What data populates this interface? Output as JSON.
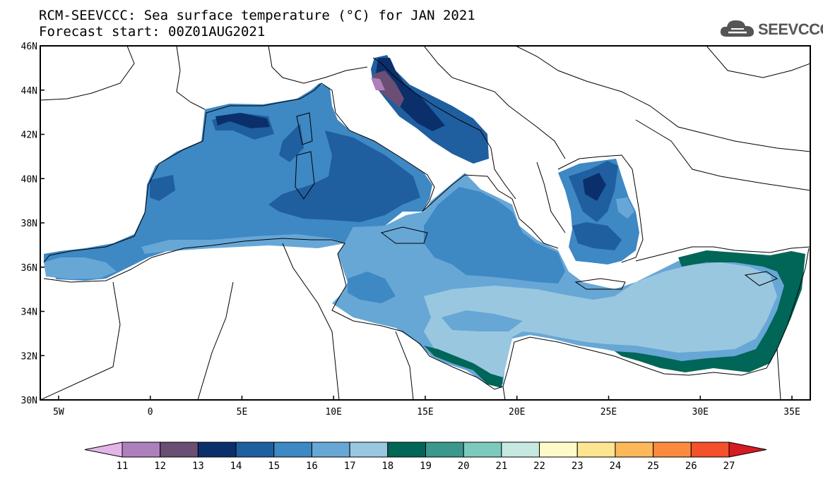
{
  "title": {
    "line1": "RCM-SEEVCCC: Sea surface temperature (°C) for JAN 2021",
    "line2": "Forecast start: 00Z01AUG2021"
  },
  "logo": {
    "text": "SEEVCCC",
    "icon": "cloud-icon"
  },
  "map": {
    "region": "Mediterranean Sea",
    "lat_labels": [
      "46N",
      "44N",
      "42N",
      "40N",
      "38N",
      "36N",
      "34N",
      "32N",
      "30N"
    ],
    "lon_labels": [
      "5W",
      "0",
      "5E",
      "10E",
      "15E",
      "20E",
      "25E",
      "30E",
      "35E"
    ],
    "lat_range": [
      30,
      46
    ],
    "lon_range": [
      -6,
      36
    ]
  },
  "colorbar": {
    "labels": [
      "11",
      "12",
      "13",
      "14",
      "15",
      "16",
      "17",
      "18",
      "19",
      "20",
      "21",
      "22",
      "23",
      "24",
      "25",
      "26",
      "27"
    ],
    "colors": [
      "#e2b6e6",
      "#ad80bb",
      "#6a4e73",
      "#0b2f6b",
      "#1f5fa0",
      "#3e88c4",
      "#67a7d6",
      "#9ac7e0",
      "#006657",
      "#3a988d",
      "#7cc9bd",
      "#c7e8e1",
      "#fffbc9",
      "#fee590",
      "#fdb859",
      "#fb8b3e",
      "#f4502c",
      "#d61c21"
    ]
  }
}
